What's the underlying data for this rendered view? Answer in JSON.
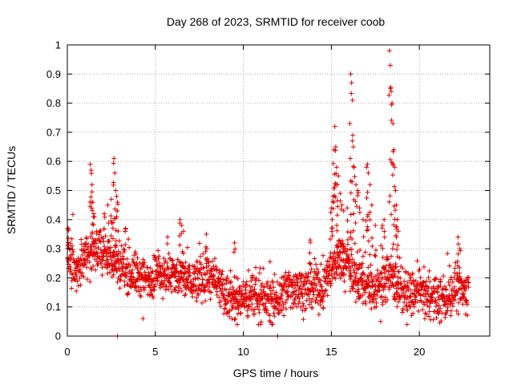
{
  "chart_data": {
    "type": "scatter",
    "title": "Day 268 of 2023, SRMTID for receiver coob",
    "xlabel": "GPS time / hours",
    "ylabel": "SRMTID / TECUs",
    "xlim": [
      0,
      24
    ],
    "ylim": [
      0,
      1
    ],
    "xticks": [
      0,
      5,
      10,
      15,
      20
    ],
    "xtick_labels": [
      "0",
      "5",
      "10",
      "15",
      "20"
    ],
    "yticks": [
      0,
      0.1,
      0.2,
      0.3,
      0.4,
      0.5,
      0.6,
      0.7,
      0.8,
      0.9,
      1
    ],
    "ytick_labels": [
      "0",
      "0.1",
      "0.2",
      "0.3",
      "0.4",
      "0.5",
      "0.6",
      "0.7",
      "0.8",
      "0.9",
      "1"
    ],
    "grid": true,
    "marker": "+",
    "color": "#e00000",
    "profile": [
      [
        0.0,
        0.27
      ],
      [
        0.5,
        0.23
      ],
      [
        1.0,
        0.27
      ],
      [
        1.5,
        0.28
      ],
      [
        2.0,
        0.3
      ],
      [
        2.5,
        0.26
      ],
      [
        3.0,
        0.25
      ],
      [
        3.5,
        0.22
      ],
      [
        4.0,
        0.21
      ],
      [
        4.5,
        0.19
      ],
      [
        5.0,
        0.21
      ],
      [
        5.5,
        0.22
      ],
      [
        6.0,
        0.21
      ],
      [
        6.5,
        0.2
      ],
      [
        7.0,
        0.19
      ],
      [
        7.5,
        0.19
      ],
      [
        8.0,
        0.21
      ],
      [
        8.5,
        0.17
      ],
      [
        9.0,
        0.14
      ],
      [
        9.5,
        0.12
      ],
      [
        10.0,
        0.13
      ],
      [
        10.5,
        0.14
      ],
      [
        11.0,
        0.13
      ],
      [
        11.5,
        0.12
      ],
      [
        12.0,
        0.12
      ],
      [
        12.5,
        0.16
      ],
      [
        13.0,
        0.17
      ],
      [
        13.5,
        0.16
      ],
      [
        14.0,
        0.16
      ],
      [
        14.5,
        0.16
      ],
      [
        15.0,
        0.24
      ],
      [
        15.5,
        0.26
      ],
      [
        16.0,
        0.24
      ],
      [
        16.5,
        0.19
      ],
      [
        17.0,
        0.17
      ],
      [
        17.5,
        0.16
      ],
      [
        18.0,
        0.2
      ],
      [
        18.5,
        0.19
      ],
      [
        19.0,
        0.15
      ],
      [
        19.5,
        0.14
      ],
      [
        20.0,
        0.15
      ],
      [
        20.5,
        0.14
      ],
      [
        21.0,
        0.12
      ],
      [
        21.5,
        0.13
      ],
      [
        22.0,
        0.16
      ],
      [
        22.5,
        0.15
      ],
      [
        22.8,
        0.15
      ]
    ],
    "scatter_spread": 0.065,
    "peaks": [
      [
        0.05,
        0.37
      ],
      [
        1.3,
        0.59
      ],
      [
        1.35,
        0.57
      ],
      [
        1.4,
        0.52
      ],
      [
        1.45,
        0.46
      ],
      [
        1.5,
        0.42
      ],
      [
        2.1,
        0.42
      ],
      [
        2.3,
        0.45
      ],
      [
        2.5,
        0.47
      ],
      [
        2.6,
        0.39
      ],
      [
        2.65,
        0.61
      ],
      [
        2.7,
        0.56
      ],
      [
        2.75,
        0.5
      ],
      [
        2.8,
        0.48
      ],
      [
        2.85,
        0.46
      ],
      [
        3.3,
        0.37
      ],
      [
        6.4,
        0.4
      ],
      [
        6.5,
        0.38
      ],
      [
        6.6,
        0.36
      ],
      [
        7.9,
        0.35
      ],
      [
        9.5,
        0.32
      ],
      [
        13.8,
        0.33
      ],
      [
        15.0,
        0.44
      ],
      [
        15.05,
        0.4
      ],
      [
        15.1,
        0.48
      ],
      [
        15.15,
        0.64
      ],
      [
        15.2,
        0.72
      ],
      [
        15.25,
        0.65
      ],
      [
        15.3,
        0.58
      ],
      [
        15.35,
        0.52
      ],
      [
        15.4,
        0.55
      ],
      [
        15.5,
        0.49
      ],
      [
        15.6,
        0.45
      ],
      [
        15.7,
        0.43
      ],
      [
        15.9,
        0.44
      ],
      [
        16.05,
        0.73
      ],
      [
        16.1,
        0.9
      ],
      [
        16.15,
        0.87
      ],
      [
        16.2,
        0.81
      ],
      [
        16.25,
        0.65
      ],
      [
        16.3,
        0.58
      ],
      [
        16.4,
        0.52
      ],
      [
        16.5,
        0.5
      ],
      [
        16.6,
        0.44
      ],
      [
        16.8,
        0.4
      ],
      [
        17.0,
        0.58
      ],
      [
        17.05,
        0.59
      ],
      [
        17.1,
        0.56
      ],
      [
        17.2,
        0.52
      ],
      [
        17.3,
        0.45
      ],
      [
        17.5,
        0.38
      ],
      [
        18.3,
        0.98
      ],
      [
        18.35,
        0.93
      ],
      [
        18.4,
        0.84
      ],
      [
        18.45,
        0.8
      ],
      [
        18.5,
        0.73
      ],
      [
        18.55,
        0.64
      ],
      [
        18.6,
        0.58
      ],
      [
        18.65,
        0.5
      ],
      [
        18.7,
        0.45
      ],
      [
        18.75,
        0.4
      ],
      [
        18.0,
        0.4
      ],
      [
        17.9,
        0.38
      ],
      [
        18.8,
        0.36
      ],
      [
        22.2,
        0.34
      ],
      [
        22.3,
        0.3
      ]
    ],
    "lows": [
      [
        2.85,
        0.0
      ],
      [
        11.95,
        0.0
      ],
      [
        4.3,
        0.06
      ],
      [
        9.65,
        0.04
      ],
      [
        17.8,
        0.05
      ],
      [
        19.3,
        0.04
      ]
    ]
  }
}
